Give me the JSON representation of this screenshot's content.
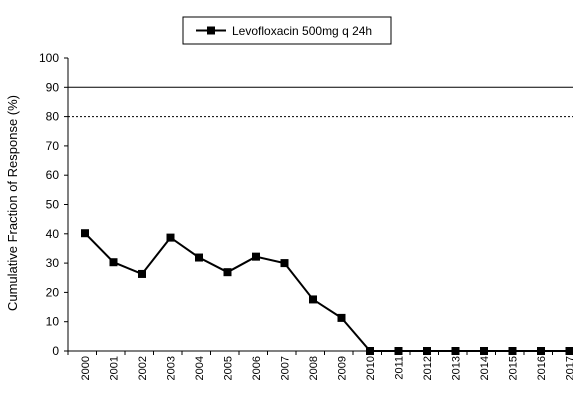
{
  "chart_data": {
    "type": "line",
    "title": "",
    "xlabel": "",
    "ylabel": "Cumulative Fraction of Response (%)",
    "categories": [
      "2000",
      "2001",
      "2002",
      "2003",
      "2004",
      "2005",
      "2006",
      "2007",
      "2008",
      "2009",
      "2010",
      "2011",
      "2012",
      "2013",
      "2014",
      "2015",
      "2016",
      "2017"
    ],
    "series": [
      {
        "name": "Levofloxacin 500mg q 24h",
        "values": [
          40.2,
          30.3,
          26.3,
          38.7,
          31.9,
          26.9,
          32.2,
          30.0,
          17.6,
          11.3,
          0,
          0,
          0,
          0,
          0,
          0,
          0,
          0
        ]
      }
    ],
    "ylim": [
      0,
      100
    ],
    "yticks": [
      0,
      10,
      20,
      30,
      40,
      50,
      60,
      70,
      80,
      90,
      100
    ],
    "reference_lines": [
      {
        "y": 90,
        "style": "solid"
      },
      {
        "y": 80,
        "style": "dashed"
      }
    ],
    "legend_position": "top-center",
    "grid": false,
    "colors": {
      "line": "#000000",
      "marker": "#000000"
    }
  }
}
